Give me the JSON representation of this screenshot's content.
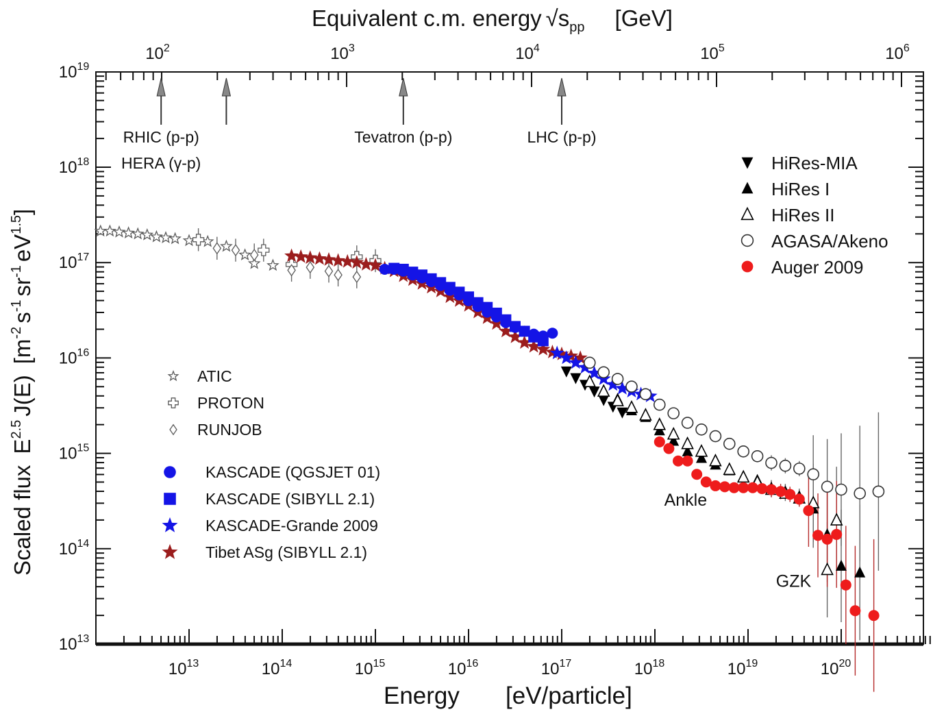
{
  "chart_data": {
    "type": "scatter",
    "title": "Equivalent c.m. energy √s_pp [GeV]",
    "top_axis": {
      "label_main": "Equivalent c.m. energy",
      "label_sqrt": "√",
      "label_s": "s",
      "label_sub": "pp",
      "label_unit": "[GeV]",
      "ticks": [
        {
          "base": "10",
          "exp": "2",
          "value_gev": 100
        },
        {
          "base": "10",
          "exp": "3",
          "value_gev": 1000
        },
        {
          "base": "10",
          "exp": "4",
          "value_gev": 10000
        },
        {
          "base": "10",
          "exp": "5",
          "value_gev": 100000
        },
        {
          "base": "10",
          "exp": "6",
          "value_gev": 1000000
        }
      ]
    },
    "xaxis": {
      "label": "Energy",
      "unit": "[eV/particle]",
      "scale": "log",
      "range_log10": [
        12.0,
        21.0
      ],
      "ticks": [
        {
          "base": "10",
          "exp": "13",
          "log": 13
        },
        {
          "base": "10",
          "exp": "14",
          "log": 14
        },
        {
          "base": "10",
          "exp": "15",
          "log": 15
        },
        {
          "base": "10",
          "exp": "16",
          "log": 16
        },
        {
          "base": "10",
          "exp": "17",
          "log": 17
        },
        {
          "base": "10",
          "exp": "18",
          "log": 18
        },
        {
          "base": "10",
          "exp": "19",
          "log": 19
        },
        {
          "base": "10",
          "exp": "20",
          "log": 20
        }
      ]
    },
    "yaxis": {
      "label": "Scaled flux",
      "scale": "log",
      "range_log10": [
        13,
        19
      ],
      "ticks": [
        {
          "base": "10",
          "exp": "13",
          "log": 13
        },
        {
          "base": "10",
          "exp": "14",
          "log": 14
        },
        {
          "base": "10",
          "exp": "15",
          "log": 15
        },
        {
          "base": "10",
          "exp": "16",
          "log": 16
        },
        {
          "base": "10",
          "exp": "17",
          "log": 17
        },
        {
          "base": "10",
          "exp": "18",
          "log": 18
        },
        {
          "base": "10",
          "exp": "19",
          "log": 19
        }
      ]
    },
    "accelerators": [
      {
        "lines": [
          "RHIC (p-p)",
          "HERA (γ-p)"
        ],
        "log_e": 12.7
      },
      {
        "lines": [
          "",
          ""
        ],
        "log_e": 13.4
      },
      {
        "lines": [
          "Tevatron (p-p)",
          ""
        ],
        "log_e": 15.3
      },
      {
        "lines": [
          "LHC (p-p)",
          ""
        ],
        "log_e": 17.0
      }
    ],
    "annotations": [
      {
        "text": "Ankle",
        "log_e": 18.1,
        "log_y": 14.45
      },
      {
        "text": "GZK",
        "log_e": 19.3,
        "log_y": 13.6
      }
    ],
    "colors": {
      "axis": "#111111",
      "gray": "#5a5a5a",
      "black": "#000000",
      "blue": "#1414e6",
      "darkred": "#9b1d1d",
      "red": "#ee1c1c"
    },
    "legend_left": [
      {
        "name": "ATIC",
        "marker": "star-open",
        "color": "#5a5a5a"
      },
      {
        "name": "PROTON",
        "marker": "cross-open",
        "color": "#5a5a5a"
      },
      {
        "name": "RUNJOB",
        "marker": "diamond-open",
        "color": "#5a5a5a"
      },
      {
        "name": "KASCADE (QGSJET 01)",
        "marker": "circle",
        "color": "#1414e6"
      },
      {
        "name": "KASCADE (SIBYLL 2.1)",
        "marker": "square",
        "color": "#1414e6"
      },
      {
        "name": "KASCADE-Grande 2009",
        "marker": "star",
        "color": "#1414e6"
      },
      {
        "name": "Tibet ASg (SIBYLL 2.1)",
        "marker": "star",
        "color": "#9b1d1d"
      }
    ],
    "legend_right": [
      {
        "name": "HiRes-MIA",
        "marker": "tri-down",
        "color": "#000000"
      },
      {
        "name": "HiRes I",
        "marker": "tri-up",
        "color": "#000000"
      },
      {
        "name": "HiRes II",
        "marker": "tri-up-open",
        "color": "#000000"
      },
      {
        "name": "AGASA/Akeno",
        "marker": "circle-open",
        "color": "#333333"
      },
      {
        "name": "Auger 2009",
        "marker": "circle",
        "color": "#ee1c1c"
      }
    ],
    "series": [
      {
        "name": "ATIC",
        "marker": "star-open",
        "color": "#5a5a5a",
        "points": [
          [
            12.05,
            17.33
          ],
          [
            12.15,
            17.33
          ],
          [
            12.25,
            17.32
          ],
          [
            12.35,
            17.31
          ],
          [
            12.45,
            17.3
          ],
          [
            12.55,
            17.29
          ],
          [
            12.65,
            17.27
          ],
          [
            12.75,
            17.26
          ],
          [
            12.85,
            17.25
          ],
          [
            13.0,
            17.23
          ],
          [
            13.2,
            17.22
          ],
          [
            13.4,
            17.17
          ],
          [
            13.6,
            17.08
          ],
          [
            13.7,
            16.99
          ],
          [
            13.9,
            16.97
          ]
        ]
      },
      {
        "name": "PROTON",
        "marker": "cross-open",
        "color": "#5a5a5a",
        "points": [
          [
            13.1,
            17.24
          ],
          [
            13.8,
            17.13
          ],
          [
            14.1,
            16.98
          ],
          [
            14.8,
            17.06
          ],
          [
            15.0,
            17.02
          ]
        ]
      },
      {
        "name": "RUNJOB",
        "marker": "diamond-open",
        "color": "#5a5a5a",
        "points": [
          [
            13.3,
            17.15
          ],
          [
            13.5,
            17.13
          ],
          [
            13.7,
            17.08
          ],
          [
            14.1,
            16.92
          ],
          [
            14.3,
            16.95
          ],
          [
            14.5,
            16.91
          ],
          [
            14.6,
            16.87
          ],
          [
            14.8,
            16.85
          ]
        ]
      },
      {
        "name": "Tibet ASg (SIBYLL 2.1)",
        "marker": "star",
        "color": "#9b1d1d",
        "points": [
          [
            14.1,
            17.07
          ],
          [
            14.2,
            17.06
          ],
          [
            14.3,
            17.05
          ],
          [
            14.4,
            17.04
          ],
          [
            14.5,
            17.03
          ],
          [
            14.6,
            17.02
          ],
          [
            14.7,
            17.01
          ],
          [
            14.8,
            17.0
          ],
          [
            14.9,
            16.98
          ],
          [
            15.0,
            16.97
          ],
          [
            15.1,
            16.94
          ],
          [
            15.2,
            16.91
          ],
          [
            15.3,
            16.86
          ],
          [
            15.4,
            16.82
          ],
          [
            15.5,
            16.78
          ],
          [
            15.6,
            16.74
          ],
          [
            15.7,
            16.7
          ],
          [
            15.8,
            16.64
          ],
          [
            15.9,
            16.6
          ],
          [
            16.0,
            16.55
          ],
          [
            16.1,
            16.48
          ],
          [
            16.2,
            16.42
          ],
          [
            16.3,
            16.36
          ],
          [
            16.4,
            16.28
          ],
          [
            16.5,
            16.22
          ],
          [
            16.6,
            16.16
          ],
          [
            16.7,
            16.12
          ],
          [
            16.8,
            16.09
          ],
          [
            16.9,
            16.06
          ],
          [
            17.0,
            16.04
          ],
          [
            17.1,
            16.02
          ],
          [
            17.2,
            16.0
          ]
        ]
      },
      {
        "name": "KASCADE (SIBYLL 2.1)",
        "marker": "square",
        "color": "#1414e6",
        "points": [
          [
            15.2,
            16.94
          ],
          [
            15.3,
            16.93
          ],
          [
            15.4,
            16.9
          ],
          [
            15.5,
            16.87
          ],
          [
            15.6,
            16.83
          ],
          [
            15.7,
            16.79
          ],
          [
            15.8,
            16.74
          ],
          [
            15.9,
            16.69
          ],
          [
            16.0,
            16.64
          ],
          [
            16.1,
            16.58
          ],
          [
            16.2,
            16.53
          ],
          [
            16.3,
            16.47
          ],
          [
            16.4,
            16.4
          ],
          [
            16.5,
            16.33
          ],
          [
            16.6,
            16.28
          ],
          [
            16.7,
            16.22
          ],
          [
            16.8,
            16.18
          ]
        ]
      },
      {
        "name": "KASCADE (QGSJET 01)",
        "marker": "circle",
        "color": "#1414e6",
        "points": [
          [
            15.1,
            16.93
          ],
          [
            15.2,
            16.93
          ],
          [
            15.3,
            16.91
          ],
          [
            15.4,
            16.87
          ],
          [
            15.5,
            16.84
          ],
          [
            15.6,
            16.8
          ],
          [
            15.7,
            16.76
          ],
          [
            15.8,
            16.71
          ],
          [
            15.9,
            16.66
          ],
          [
            16.0,
            16.6
          ],
          [
            16.1,
            16.54
          ],
          [
            16.2,
            16.48
          ],
          [
            16.3,
            16.43
          ],
          [
            16.4,
            16.37
          ],
          [
            16.5,
            16.32
          ],
          [
            16.6,
            16.28
          ],
          [
            16.7,
            16.25
          ],
          [
            16.8,
            16.23
          ],
          [
            16.9,
            16.26
          ]
        ]
      },
      {
        "name": "KASCADE-Grande 2009",
        "marker": "star",
        "color": "#1414e6",
        "points": [
          [
            16.95,
            16.05
          ],
          [
            17.05,
            16.0
          ],
          [
            17.15,
            15.95
          ],
          [
            17.25,
            15.9
          ],
          [
            17.35,
            15.84
          ],
          [
            17.45,
            15.78
          ],
          [
            17.55,
            15.72
          ],
          [
            17.65,
            15.68
          ],
          [
            17.75,
            15.65
          ],
          [
            17.85,
            15.62
          ],
          [
            17.95,
            15.6
          ]
        ]
      },
      {
        "name": "AGASA/Akeno",
        "marker": "circle-open",
        "color": "#333333",
        "points": [
          [
            17.3,
            15.95
          ],
          [
            17.45,
            15.85
          ],
          [
            17.6,
            15.78
          ],
          [
            17.75,
            15.7
          ],
          [
            17.9,
            15.62
          ],
          [
            18.05,
            15.51
          ],
          [
            18.2,
            15.42
          ],
          [
            18.35,
            15.32
          ],
          [
            18.5,
            15.25
          ],
          [
            18.65,
            15.18
          ],
          [
            18.8,
            15.1
          ],
          [
            18.95,
            15.02
          ],
          [
            19.1,
            14.97
          ],
          [
            19.25,
            14.9
          ],
          [
            19.4,
            14.87
          ],
          [
            19.55,
            14.84
          ],
          [
            19.7,
            14.78
          ],
          [
            19.85,
            14.65
          ],
          [
            20.0,
            14.62
          ],
          [
            20.2,
            14.58
          ],
          [
            20.4,
            14.6
          ]
        ]
      },
      {
        "name": "HiRes-MIA",
        "marker": "tri-down",
        "color": "#000000",
        "points": [
          [
            17.05,
            15.86
          ],
          [
            17.15,
            15.79
          ],
          [
            17.25,
            15.72
          ],
          [
            17.35,
            15.65
          ],
          [
            17.45,
            15.56
          ],
          [
            17.55,
            15.49
          ],
          [
            17.65,
            15.43
          ]
        ]
      },
      {
        "name": "HiRes I",
        "marker": "tri-up",
        "color": "#000000",
        "points": [
          [
            17.6,
            15.57
          ],
          [
            17.75,
            15.45
          ],
          [
            17.9,
            15.38
          ],
          [
            18.05,
            15.24
          ],
          [
            18.2,
            15.13
          ],
          [
            18.35,
            15.02
          ],
          [
            18.5,
            14.95
          ],
          [
            18.65,
            14.88
          ],
          [
            18.8,
            14.82
          ],
          [
            18.95,
            14.76
          ],
          [
            19.1,
            14.72
          ],
          [
            19.25,
            14.64
          ],
          [
            19.4,
            14.6
          ],
          [
            19.55,
            14.55
          ],
          [
            19.7,
            14.42
          ],
          [
            19.85,
            14.15
          ],
          [
            20.0,
            13.82
          ],
          [
            20.2,
            13.75
          ]
        ]
      },
      {
        "name": "HiRes II",
        "marker": "tri-up-open",
        "color": "#000000",
        "points": [
          [
            17.3,
            15.75
          ],
          [
            17.45,
            15.65
          ],
          [
            17.6,
            15.55
          ],
          [
            17.75,
            15.48
          ],
          [
            17.9,
            15.4
          ],
          [
            18.05,
            15.3
          ],
          [
            18.2,
            15.2
          ],
          [
            18.35,
            15.1
          ],
          [
            18.5,
            15.02
          ],
          [
            18.65,
            14.92
          ],
          [
            18.8,
            14.83
          ],
          [
            18.95,
            14.75
          ],
          [
            19.1,
            14.7
          ],
          [
            19.25,
            14.62
          ],
          [
            19.4,
            14.58
          ],
          [
            19.55,
            14.53
          ],
          [
            19.7,
            14.48
          ],
          [
            19.85,
            13.78
          ],
          [
            19.95,
            14.3
          ]
        ]
      },
      {
        "name": "Auger 2009",
        "marker": "circle",
        "color": "#ee1c1c",
        "points": [
          [
            18.05,
            15.12
          ],
          [
            18.15,
            15.05
          ],
          [
            18.25,
            14.92
          ],
          [
            18.35,
            14.92
          ],
          [
            18.45,
            14.78
          ],
          [
            18.55,
            14.7
          ],
          [
            18.65,
            14.66
          ],
          [
            18.75,
            14.65
          ],
          [
            18.85,
            14.64
          ],
          [
            18.95,
            14.64
          ],
          [
            19.05,
            14.64
          ],
          [
            19.15,
            14.63
          ],
          [
            19.25,
            14.62
          ],
          [
            19.35,
            14.6
          ],
          [
            19.45,
            14.57
          ],
          [
            19.55,
            14.52
          ],
          [
            19.65,
            14.4
          ],
          [
            19.75,
            14.14
          ],
          [
            19.85,
            14.1
          ],
          [
            19.95,
            14.15
          ],
          [
            20.05,
            13.62
          ],
          [
            20.15,
            13.35
          ],
          [
            20.35,
            13.3
          ]
        ]
      }
    ]
  }
}
